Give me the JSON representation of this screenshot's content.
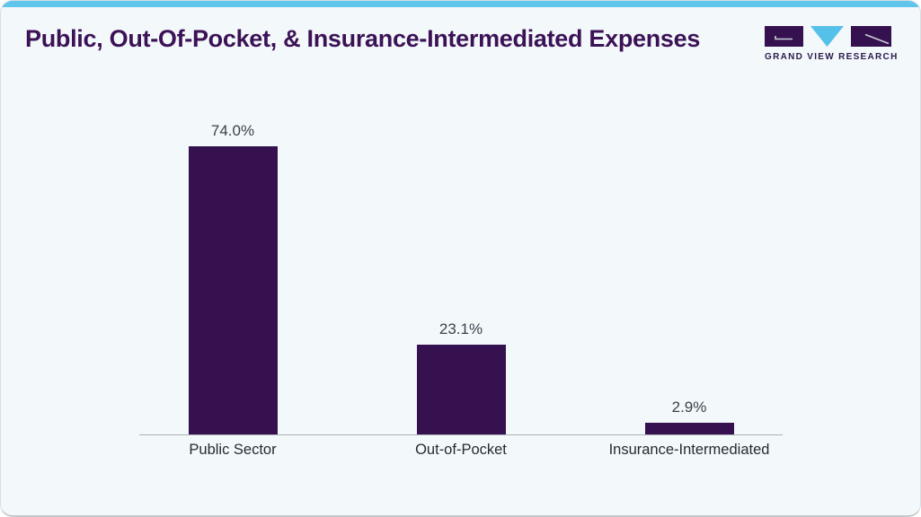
{
  "header": {
    "title": "Public, Out-Of-Pocket, & Insurance-Intermediated Expenses"
  },
  "logo": {
    "brand": "GRAND VIEW RESEARCH"
  },
  "colors": {
    "accent_blue": "#5fc5eb",
    "title_purple": "#3c1256",
    "bar_purple": "#351150",
    "card_background": "#f3f8fb"
  },
  "chart_data": {
    "type": "bar",
    "title": "Public, Out-Of-Pocket, & Insurance-Intermediated Expenses",
    "categories": [
      "Public Sector",
      "Out-of-Pocket",
      "Insurance-Intermediated"
    ],
    "values": [
      74.0,
      23.1,
      2.9
    ],
    "value_labels": [
      "74.0%",
      "23.1%",
      "2.9%"
    ],
    "unit": "%",
    "ylim": [
      0,
      80
    ],
    "bar_color": "#351150",
    "axis_color": "#adb1b5",
    "grid": false,
    "legend": false,
    "value_labels_position": "above-bars"
  }
}
